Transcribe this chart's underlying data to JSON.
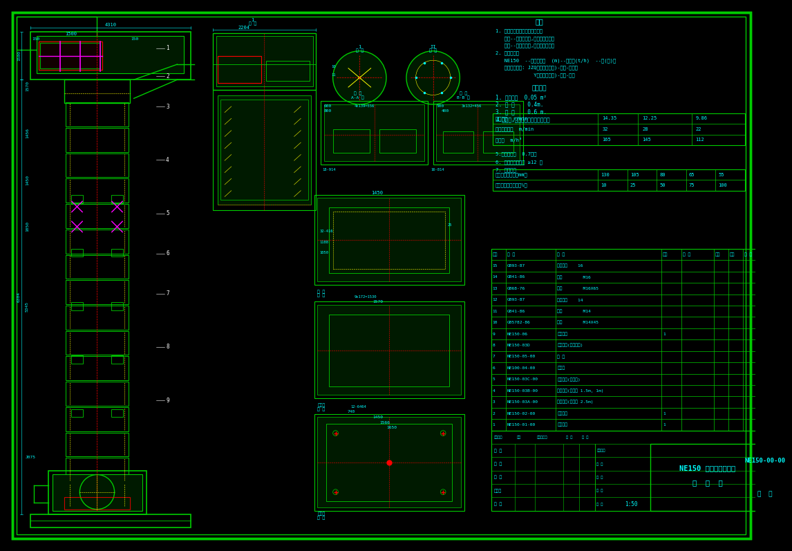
{
  "title": "NE150 板链斗式提升机",
  "subtitle": "总 装 图",
  "drawing_number": "NE150-00-00",
  "scale": "1:50",
  "bg_color": "#000000",
  "line_color": "#00CC00",
  "text_color": "#00FFFF",
  "dim_color": "#00FFFF",
  "red_color": "#FF0000",
  "yellow_color": "#FFFF00",
  "magenta_color": "#FF00FF",
  "white_color": "#FFFFFF",
  "bom_items": [
    [
      "15",
      "GB93-87",
      "弹簧垫圈    16",
      "",
      "",
      "",
      "",
      ""
    ],
    [
      "14",
      "GB41-86",
      "螺母        M16",
      "",
      "",
      "",
      "",
      ""
    ],
    [
      "13",
      "GB68-76",
      "螺钉        M16X65",
      "",
      "",
      "",
      "",
      ""
    ],
    [
      "12",
      "GB93-87",
      "弹簧垫圈    14",
      "",
      "",
      "",
      "",
      ""
    ],
    [
      "11",
      "GB41-86",
      "螺母        M14",
      "",
      "",
      "",
      "",
      ""
    ],
    [
      "10",
      "GB5782-86",
      "螺栓        M14X45",
      "",
      "",
      "",
      "",
      ""
    ],
    [
      "9",
      "NE150-06",
      "下罩壳组",
      "1",
      "",
      "",
      "",
      ""
    ],
    [
      "8",
      "NE150-03D",
      "中部机壳(带链轮门)",
      "",
      "",
      "",
      "",
      ""
    ],
    [
      "7",
      "NE150-05-00",
      "斗 斗",
      "",
      "",
      "",
      "",
      ""
    ],
    [
      "6",
      "NE100-04-00",
      "牵引链",
      "",
      "",
      "",
      "",
      ""
    ],
    [
      "5",
      "NE150-03C-00",
      "中部机壳(带导轨)",
      "",
      "",
      "",
      "",
      ""
    ],
    [
      "4",
      "NE150-03B-00",
      "中部机壳(标移节 1.5m, 1m)",
      "",
      "",
      "",
      "",
      ""
    ],
    [
      "3",
      "NE150-03A-00",
      "中部机壳(标移节 2.5m)",
      "",
      "",
      "",
      "",
      ""
    ],
    [
      "2",
      "NE150-02-00",
      "上罩壳组",
      "1",
      "",
      "",
      "",
      ""
    ],
    [
      "1",
      "NE150-01-00",
      "驱动装置",
      "1",
      "",
      "",
      "",
      ""
    ]
  ],
  "bom_header": [
    "序号",
    "代 号",
    "名 称",
    "数量",
    "材 料",
    "单重",
    "总重",
    "备 注"
  ]
}
